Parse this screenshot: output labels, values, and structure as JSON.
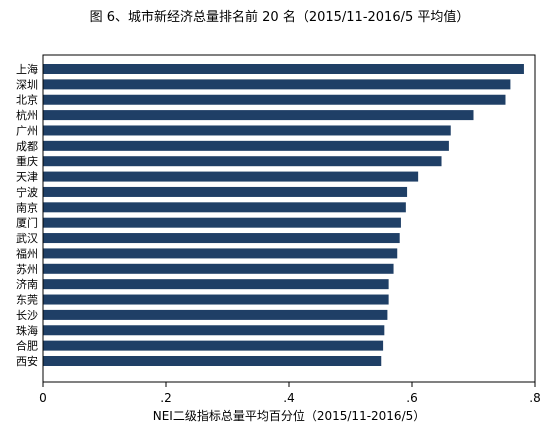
{
  "chart_data": {
    "type": "bar",
    "orientation": "horizontal",
    "title": "图 6、城市新经济总量排名前 20 名（2015/11-2016/5 平均值）",
    "xlabel": "NEI二级指标总量平均百分位（2015/11-2016/5）",
    "ylabel": "",
    "xlim": [
      0,
      0.8
    ],
    "x_ticks": [
      0,
      0.2,
      0.4,
      0.6,
      0.8
    ],
    "x_tick_labels": [
      "0",
      ".2",
      ".4",
      ".6",
      ".8"
    ],
    "categories": [
      "上海",
      "深圳",
      "北京",
      "杭州",
      "广州",
      "成都",
      "重庆",
      "天津",
      "宁波",
      "南京",
      "厦门",
      "武汉",
      "福州",
      "苏州",
      "济南",
      "东莞",
      "长沙",
      "珠海",
      "合肥",
      "西安"
    ],
    "values": [
      0.782,
      0.76,
      0.752,
      0.7,
      0.663,
      0.66,
      0.648,
      0.61,
      0.592,
      0.59,
      0.582,
      0.58,
      0.576,
      0.57,
      0.562,
      0.562,
      0.56,
      0.555,
      0.553,
      0.55
    ],
    "bar_color": "#1f3f66",
    "grid": false,
    "legend": "none"
  }
}
